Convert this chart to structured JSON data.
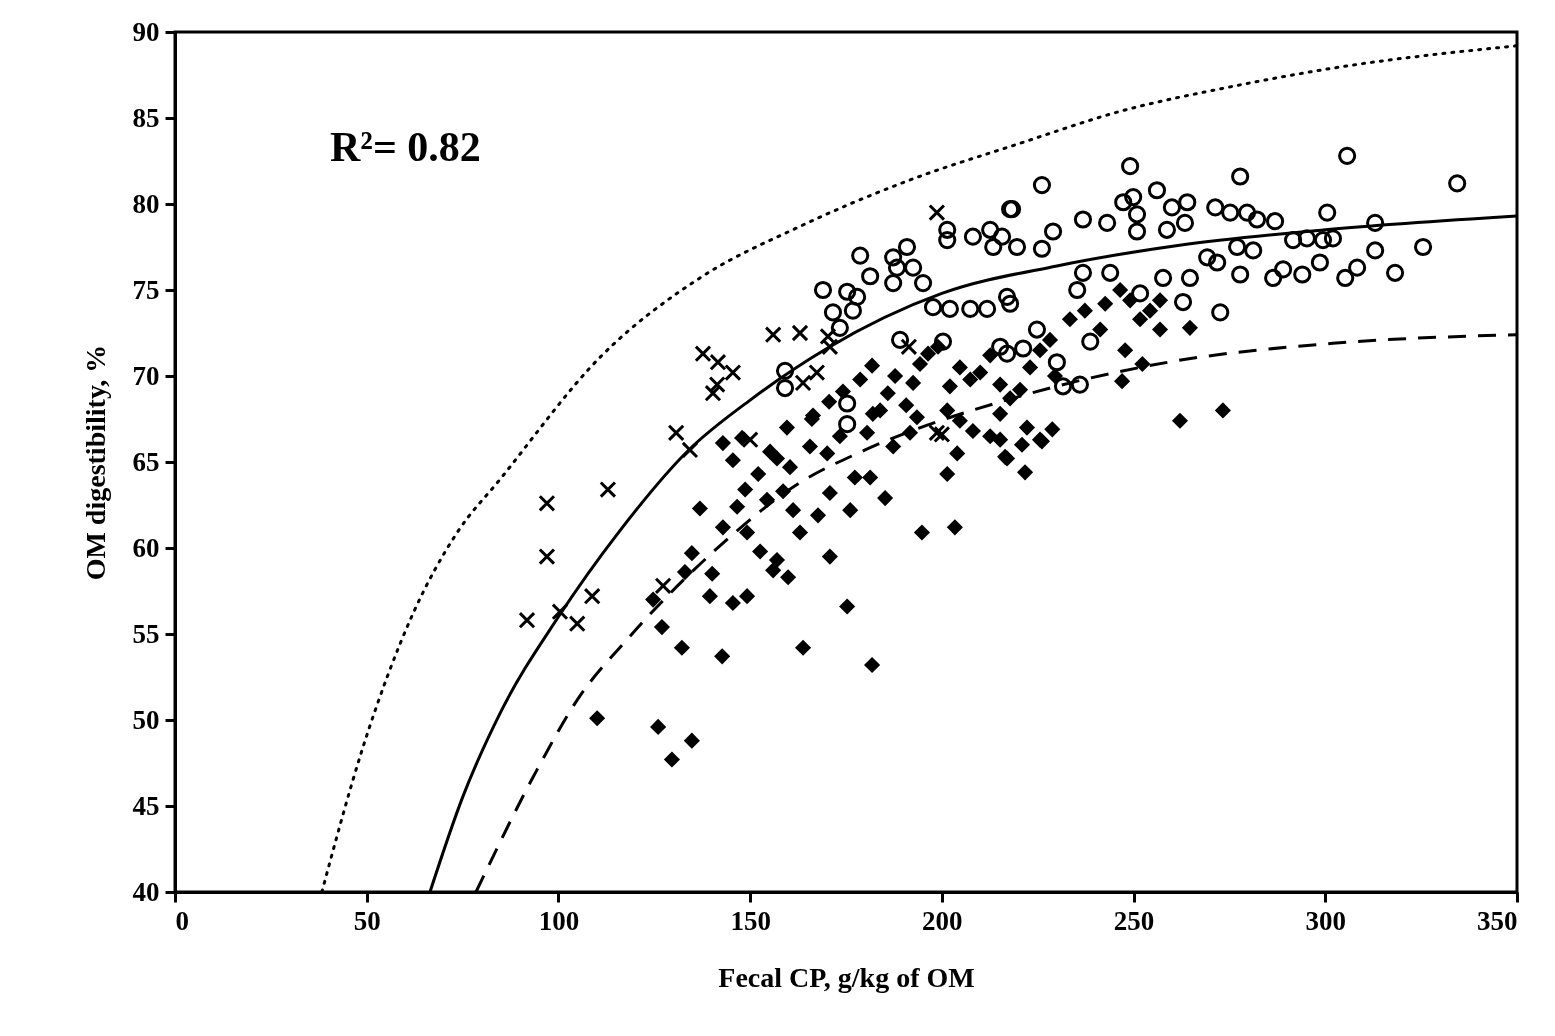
{
  "chart_data": {
    "type": "scatter",
    "xlabel": "Fecal CP, g/kg of OM",
    "ylabel": "OM digestibility, %",
    "annotations": [
      "R²= 0.82"
    ],
    "xlim": [
      0,
      350
    ],
    "ylim": [
      40,
      90
    ],
    "xticks": [
      0,
      50,
      100,
      150,
      200,
      250,
      300,
      350
    ],
    "yticks": [
      40,
      45,
      50,
      55,
      60,
      65,
      70,
      75,
      80,
      85,
      90
    ],
    "grid": false,
    "series": [
      {
        "marker": "cross",
        "color": "#000000",
        "x": [
          91.8,
          97,
          97,
          100.4,
          104.9,
          108.8,
          112.9,
          130.7,
          134.3,
          127.3,
          137.7,
          141.6,
          141.4,
          145.5,
          140.3,
          156,
          163,
          170.3,
          167.4,
          163.8,
          198.7,
          170.8,
          191.4,
          200,
          150,
          198.7
        ],
        "values": [
          55.8,
          59.5,
          62.6,
          56.3,
          55.6,
          57.2,
          63.4,
          66.7,
          65.7,
          57.8,
          71.3,
          70.8,
          69.5,
          70.2,
          69.0,
          72.4,
          72.5,
          72.3,
          70.2,
          69.6,
          79.5,
          71.7,
          71.7,
          66.6,
          66.3,
          66.7
        ]
      },
      {
        "marker": "circle",
        "color": "#000000",
        "x": [
          305.7,
          334.4,
          277.8,
          249.1,
          226.1,
          218.3,
          256.1,
          247.3,
          249.9,
          250.9,
          260,
          264,
          271.3,
          275.2,
          279.6,
          282.2,
          286.9,
          300.5,
          313,
          313,
          325.5,
          318.2,
          308.3,
          305.2,
          298.6,
          294,
          289,
          286.4,
          277.8,
          272.6,
          262.9,
          264.7,
          271.8,
          269.2,
          277,
          281.2,
          291.6,
          295.2,
          302,
          299.4,
          231.6,
          236,
          238.7,
          224.8,
          230,
          221.2,
          217.8,
          236.8,
          243.9,
          235.3,
          243.1,
          236.8,
          250.9,
          258.7,
          263.4,
          229,
          219.6,
          226.1,
          257.7,
          251.7,
          215.7,
          178.7,
          217.8,
          169,
          175.3,
          177.9,
          171.6,
          176.8,
          173.4,
          181.3,
          187.3,
          190.9,
          188.3,
          192.5,
          195.1,
          187.3,
          201.4,
          201.4,
          208.1,
          212.6,
          213.4,
          202.1,
          207.4,
          211.8,
          217,
          197.7,
          189.1,
          200.3,
          159.1,
          159.1,
          175.3,
          175.3,
          215.2,
          217
        ],
        "values": [
          82.8,
          81.2,
          81.6,
          82.2,
          81.1,
          79.7,
          80.8,
          80.1,
          80.4,
          79.4,
          79.8,
          80.1,
          79.8,
          79.5,
          79.5,
          79.1,
          79,
          79.5,
          78.9,
          77.3,
          77.5,
          76,
          76.3,
          75.7,
          76.6,
          75.9,
          76.2,
          75.7,
          75.9,
          73.7,
          74.3,
          75.7,
          76.6,
          76.9,
          77.5,
          77.3,
          77.9,
          78,
          78,
          77.9,
          69.4,
          69.5,
          72,
          72.7,
          70.8,
          71.6,
          74.2,
          76,
          76,
          75,
          78.9,
          79.1,
          78.4,
          78.5,
          78.9,
          78.4,
          77.5,
          77.4,
          75.7,
          74.8,
          78.1,
          77,
          79.7,
          75,
          74.9,
          74.6,
          73.7,
          73.8,
          72.8,
          75.8,
          76.9,
          77.5,
          76.3,
          76.3,
          75.4,
          75.4,
          78.5,
          77.9,
          78.1,
          78.5,
          77.5,
          73.9,
          73.9,
          73.9,
          74.6,
          74,
          72.1,
          72,
          70.3,
          69.3,
          68.4,
          67.2,
          71.7,
          71.3
        ]
      },
      {
        "marker": "diamond",
        "color": "#000000",
        "x": [
          110.1,
          126,
          134.8,
          129.6,
          132.2,
          142.7,
          163.8,
          181.8,
          175.3,
          127,
          124.7,
          139.5,
          145.5,
          149.2,
          134.8,
          133,
          140.1,
          142.9,
          149.2,
          152.6,
          156,
          159.9,
          157,
          163,
          167.7,
          170.8,
          136.9,
          146.6,
          148.7,
          152.1,
          154.4,
          158.6,
          161.2,
          170.8,
          176.1,
          177.3,
          181.3,
          185.2,
          194.8,
          203.4,
          216.5,
          201.4,
          204,
          142.9,
          145.5,
          155.2,
          157,
          160.4,
          159.6,
          165.6,
          166.4,
          170.1,
          173.4,
          182,
          180.5,
          187.3,
          191.7,
          193.5,
          201.4,
          204.7,
          208.1,
          212.6,
          215.2,
          147.9,
          166.1,
          170.6,
          174.2,
          178.7,
          181.8,
          183.9,
          185.9,
          187.8,
          190.7,
          192.5,
          194.3,
          196.4,
          199,
          202.1,
          204.7,
          207.4,
          210,
          212.6,
          215.2,
          217.8,
          220.4,
          223,
          225.6,
          228.2,
          215.2,
          220.9,
          225.6,
          228.8,
          233.4,
          237.3,
          241.3,
          242.6,
          246.5,
          249.1,
          251.7,
          254.3,
          256.9,
          256.9,
          247.8,
          252.3,
          264.7,
          262.1,
          273.3,
          247,
          222.2,
          226.1,
          221.7,
          217,
          229.5
        ],
        "values": [
          50.1,
          49.6,
          48.8,
          47.7,
          54.2,
          53.7,
          54.2,
          53.2,
          56.6,
          55.4,
          57,
          57.2,
          56.8,
          57.2,
          59.7,
          58.6,
          58.5,
          61.2,
          60.9,
          59.8,
          58.7,
          58.3,
          59.3,
          60.9,
          61.9,
          59.5,
          62.3,
          62.4,
          63.4,
          64.3,
          62.8,
          63.3,
          62.2,
          63.2,
          62.2,
          64.1,
          64.1,
          62.9,
          60.9,
          61.2,
          65.3,
          64.3,
          65.5,
          66.1,
          65.1,
          65.6,
          65.2,
          64.7,
          67,
          65.9,
          67.7,
          65.5,
          66.5,
          67.8,
          66.7,
          65.9,
          66.7,
          67.6,
          68,
          67.4,
          66.8,
          66.5,
          67.8,
          66.4,
          67.5,
          68.5,
          69.1,
          69.8,
          70.6,
          68,
          69,
          70,
          68.3,
          69.6,
          70.7,
          71.3,
          71.7,
          69.4,
          70.5,
          69.8,
          70.2,
          71.2,
          69.5,
          68.7,
          69.2,
          70.5,
          71.5,
          72.1,
          66.3,
          66,
          66.3,
          66.9,
          73.3,
          73.8,
          72.7,
          74.2,
          75,
          74.4,
          73.3,
          73.8,
          74.4,
          72.7,
          71.5,
          70.7,
          72.8,
          67.4,
          68,
          69.7,
          67,
          66.2,
          64.4,
          65.2,
          70
        ]
      },
      {
        "type": "line",
        "line_style": "dotted",
        "marker": "none",
        "color": "#000000",
        "x": [
          38.3,
          49,
          62.1,
          73.6,
          84.8,
          110.9,
          136.9,
          163,
          191.7,
          220,
          246.7,
          275,
          302,
          350
        ],
        "values": [
          40,
          48.4,
          56.2,
          60.9,
          64,
          71.1,
          75.7,
          78.7,
          81.4,
          83.5,
          85.4,
          86.8,
          87.9,
          89.2
        ]
      },
      {
        "type": "line",
        "line_style": "solid",
        "marker": "none",
        "color": "#000000",
        "x": [
          66.5,
          75,
          84.8,
          100,
          116,
          134,
          150,
          170,
          200,
          230,
          262,
          300,
          350
        ],
        "values": [
          40,
          45.5,
          50.4,
          56,
          61,
          65.7,
          68.6,
          71.6,
          74.8,
          76.4,
          77.6,
          78.5,
          79.3
        ]
      },
      {
        "type": "line",
        "line_style": "dashed",
        "marker": "none",
        "color": "#000000",
        "x": [
          78.5,
          94.4,
          105,
          118,
          141,
          163,
          180,
          220,
          259,
          302,
          350
        ],
        "values": [
          40,
          47.1,
          51.2,
          54.7,
          59.9,
          63.8,
          65.7,
          68.8,
          70.8,
          71.9,
          72.4
        ]
      }
    ]
  }
}
